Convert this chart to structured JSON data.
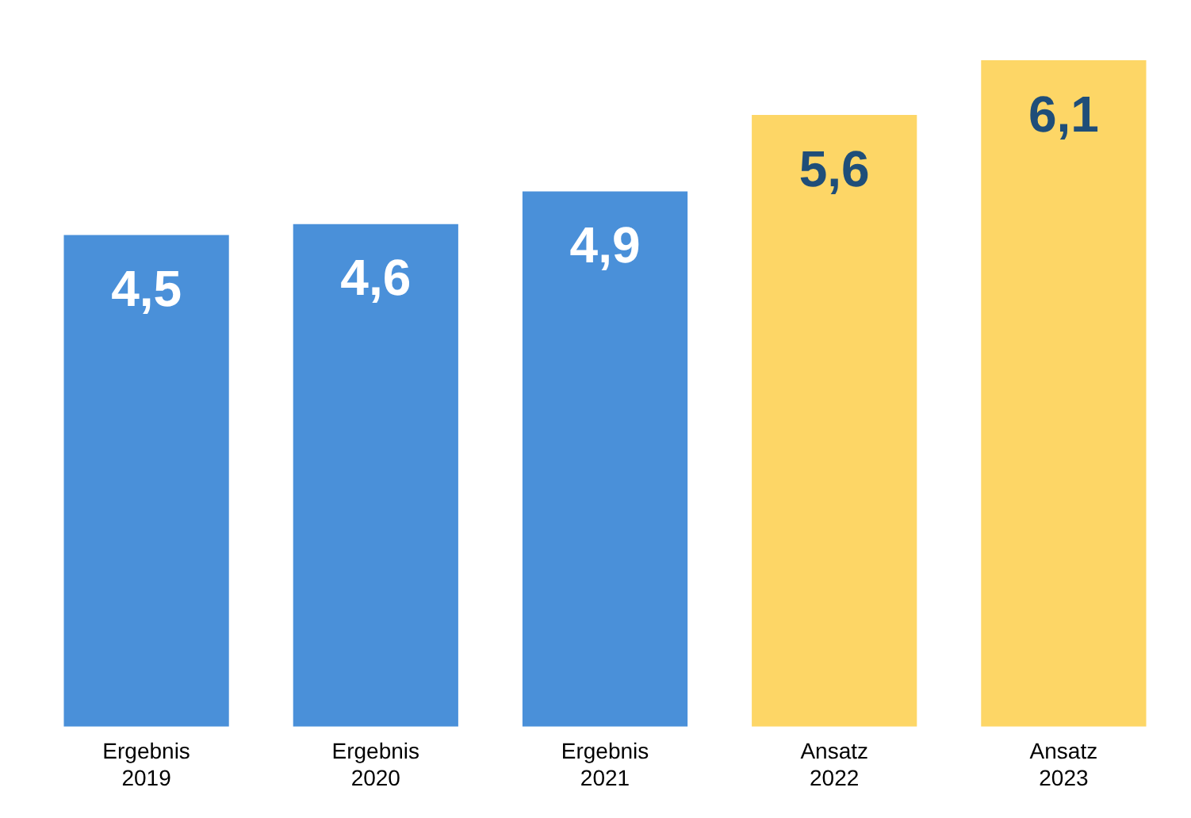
{
  "chart_data": {
    "type": "bar",
    "categories": [
      "Ergebnis 2019",
      "Ergebnis 2020",
      "Ergebnis 2021",
      "Ansatz 2022",
      "Ansatz 2023"
    ],
    "values": [
      4.5,
      4.6,
      4.9,
      5.6,
      6.1
    ],
    "colors": [
      "#4a90d9",
      "#4a90d9",
      "#4a90d9",
      "#fdd666",
      "#fdd666"
    ],
    "value_labels": [
      "4,5",
      "4,6",
      "4,9",
      "5,6",
      "6,1"
    ],
    "legend": false,
    "grid": false
  }
}
